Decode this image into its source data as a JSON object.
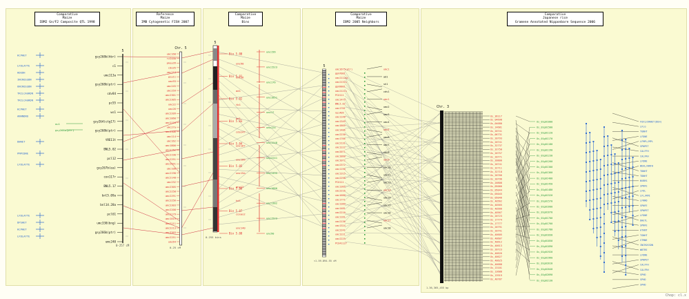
{
  "panels": [
    {
      "title": [
        "Comparative",
        "Maize",
        "IBM2 Gn/F2 Composite QTL 1998"
      ]
    },
    {
      "title": [
        "Reference",
        "Maize",
        "IMB Cytogenetic FISH 2007"
      ]
    },
    {
      "title": [
        "Comparative",
        "Maize",
        "Bins"
      ]
    },
    {
      "title": [
        "Comparative",
        "Maize",
        "IBM2 2005 Neighbors"
      ]
    },
    {
      "title": [
        "Comparative",
        "Japanese rice",
        "Gramene Annotated Nipponbare Sequence 2006"
      ]
    }
  ],
  "map1": {
    "chr": "5",
    "range": "0-257 cM",
    "qtl_labels": [
      "KCPHET",
      "LFDLAYTE",
      "HDEDH",
      "INCROSSDN",
      "UNCROSSDN",
      "TRILCAGRDN",
      "TRILCAGRDN",
      "KCPHET",
      "ANHNDNO",
      "DWHET",
      "PMPCDNE",
      "LFDLAYTE",
      "LFDLAYTE",
      "DPSHET",
      "KCPHET",
      "LFDLAYTE"
    ],
    "mid_labels": [
      "ou1",
      "gsy268b(ptr)"
    ],
    "markers": [
      "gsy268b(hbr)",
      "c1",
      "umc113a",
      "gsy268b(ptr)",
      "cdv84",
      "pc55",
      "ws1",
      "gsy264(ctg17)",
      "gsy268b(ptr)",
      "tRE11t",
      "BNL5.02",
      "pcl12",
      "gsy267b(ea)",
      "cox117r",
      "BNL5.17",
      "bnl5.09a",
      "bnl14.28a",
      "pcl61",
      "umc330(bng)",
      "gsy266b(ptr)",
      "umc240"
    ]
  },
  "map2": {
    "chr": "Chr. 5",
    "range": "0-25 cM",
    "markers": [
      "umc168",
      "rz244b",
      "pkey39",
      "cdo35",
      "umc113",
      "gsy11",
      "umc93",
      "umc245",
      "umc259",
      "umc2301",
      "umc2305",
      "umc22",
      "umc26",
      "umc2209",
      "umc1060",
      "umc2110",
      "umc27a",
      "umc2306",
      "umc114",
      "umc162",
      "umc1800",
      "umc2152",
      "umc2190",
      "umc2291",
      "umc2291",
      "umc108",
      "umc2198",
      "umc2148",
      "umc232",
      "umc2305",
      "umc2258",
      "umc2291",
      "umc2256",
      "umc2303",
      "umc2208",
      "umc2179",
      "umc1019",
      "umc2111",
      "umc2213",
      "umc3303",
      "umc2251",
      "umc64"
    ]
  },
  "map3": {
    "chr": "5",
    "range": "0-255 bins",
    "bins": [
      "Bin 5.00",
      "Bin 5.01",
      "Bin 5.02",
      "Bin 5.03",
      "Bin 5.04",
      "Bin 5.05",
      "Bin 5.06",
      "Bin 5.07",
      "Bin 5.08"
    ],
    "left_labels": [
      "umc90",
      "umc16",
      "ad1",
      "tb1",
      "ad1",
      "cdo147",
      "umc167",
      "umc166",
      "umc15a",
      "ang12",
      "hd1",
      "cosas2",
      "umc140"
    ],
    "right_labels": [
      "umc156",
      "umc1523",
      "umc176",
      "umc1851",
      "umc17",
      "umc124",
      "umc1248",
      "umc2241",
      "umc1495",
      "umc1880",
      "umc1382",
      "umc1523",
      "umc90"
    ]
  },
  "map4": {
    "chr": "5",
    "range": "<1.59-894.55 cM",
    "red_labels": [
      "umc1675(ptr)",
      "gpm7001",
      "umc2112ai",
      "umc2131s",
      "gpm9001",
      "umc2121s",
      "PCO111",
      "umc1475",
      "BNL5.02",
      "umc1701",
      "npi409",
      "umc1148",
      "umc1349",
      "umc1865",
      "umc1406",
      "umc2230",
      "umc1766",
      "umc2131",
      "umc1222",
      "umc2071",
      "umc1860",
      "umc1072",
      "umc2372",
      "umc1190",
      "umc1315",
      "umc2298",
      "PCO111",
      "umc1365",
      "umc2216",
      "umc1680",
      "umc1771",
      "umc1389",
      "umc1481",
      "umc2216",
      "umc1161",
      "umc2136",
      "umc1324",
      "umc2241",
      "umc1221",
      "umc2229",
      "PCO41127"
    ],
    "right_labels": [
      "umc1",
      "ad1",
      "sh1",
      "cdv1",
      "umc1",
      "umc2",
      "umc3",
      "umc4",
      "umc5",
      "umc6",
      "umc7",
      "umc8",
      "umc9",
      "umc10",
      "umc11",
      "umc12",
      "umc13",
      "umc14",
      "umc15",
      "umc16",
      "umc17",
      "umc18"
    ]
  },
  "map5": {
    "chr": "Chr. 3",
    "range": "1-36,365,455 bp",
    "left_labels": [
      "Os_36117",
      "Os_04698",
      "Os_04680",
      "Os_14681",
      "Os_20741",
      "Os_06731",
      "Os_20793",
      "Os_20741",
      "Os_32737",
      "Os_32750",
      "Os_20757",
      "Os_20771",
      "Os_20800",
      "Os_20741",
      "Os_32711",
      "Os_32718",
      "Os_20766",
      "Os_20796",
      "Os_20808",
      "Os_05066",
      "Os_05044",
      "Os_05045",
      "Os_05046",
      "Os_40562",
      "Os_40565",
      "Os_40566",
      "Os_40567",
      "Os_20723",
      "Os_17774",
      "Os_17777",
      "Os_20791",
      "Os_20741",
      "Os_40605",
      "Os_40607",
      "Os_40612",
      "Os_40613",
      "Os_20723",
      "Os_40626",
      "Os_40627",
      "Os_40625",
      "Os_40688",
      "Os_13101",
      "Os_13688",
      "Os_13919",
      "Os_40787"
    ],
    "green_labels": [
      "Os_01g01000",
      "Os_01g01500",
      "Os_01g01120",
      "Os_01g01170",
      "Os_01g01180",
      "Os_01g01190",
      "Os_01g01230",
      "Os_01g01260",
      "Os_01g01300",
      "Os_01g01360",
      "Os_01g01400",
      "Os_01g01450",
      "Os_01g01480",
      "Os_01g01520",
      "Os_01g01570",
      "Os_01g01600",
      "Os_01g01670",
      "Os_01g01700",
      "Os_01g01760",
      "Os_01g01780",
      "Os_01g01830",
      "Os_01g01850",
      "Os_01g01890",
      "Os_01g01920",
      "Os_01g01960",
      "Os_01g02010",
      "Os_01g02040",
      "Os_01g02090",
      "Os_01g02130"
    ],
    "right_labels": [
      "FOX1/DNHET(DEH)",
      "LFLG",
      "TGNHT",
      "LFDNE",
      "LFMPL/MPL",
      "SPNPET",
      "CALFFH",
      "CALFRH",
      "LFDNE",
      "WEHL/WNFH",
      "TDNHT",
      "TDNHT",
      "NVBRS",
      "SPNFE",
      "LFDL",
      "LFL/RMI",
      "LFNNO",
      "SPNFE",
      "SPNPET",
      "LFDNE",
      "DHETL",
      "SPNFE",
      "ATHNT",
      "TGNHT",
      "STMNE",
      "INCROSSDN",
      "WBTRE",
      "LFDNE",
      "SPNPET",
      "CALFFH",
      "CALFRH",
      "SPHD",
      "SPHD",
      "SPHD"
    ]
  },
  "footer": {
    "corner_text": "Chop: cl.x"
  },
  "colors": {
    "panel": "#fafad2",
    "marker_red": "#e03030",
    "marker_black": "#111111",
    "qtl_blue": "#2f6bd0",
    "gene_green": "#2a9a3a",
    "link_gray": "#8a8a8a",
    "link_red": "#d03040"
  }
}
